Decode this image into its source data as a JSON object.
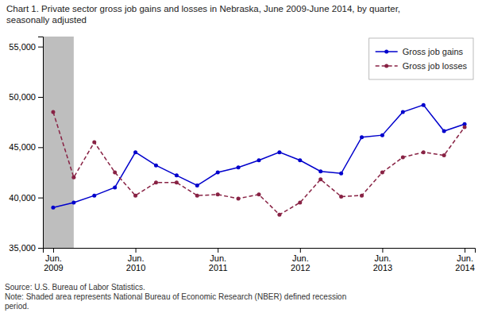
{
  "chart_data": {
    "type": "line",
    "title": "Chart 1. Private sector gross job gains and losses in Nebraska, June 2009-June  2014, by quarter,\nseasonally adjusted",
    "annotations": [
      "Source: U.S. Bureau of Labor Statistics.\nNote: Shaded area represents National Bureau of Economic Research (NBER) defined recession\nperiod."
    ],
    "categories": [
      "Jun.\n2009",
      null,
      null,
      null,
      "Jun.\n2010",
      null,
      null,
      null,
      "Jun.\n2011",
      null,
      null,
      null,
      "Jun.\n2012",
      null,
      null,
      null,
      "Jun.\n2013",
      null,
      null,
      null,
      "Jun.\n2014"
    ],
    "series": [
      {
        "name": "Gross job gains",
        "color": "#0000CC",
        "marker": "circle",
        "line_style": "solid",
        "values": [
          39000,
          39500,
          40200,
          41000,
          44500,
          43200,
          42200,
          41200,
          42500,
          43000,
          43700,
          44500,
          43700,
          42600,
          42400,
          46000,
          46200,
          48500,
          49200,
          46600,
          47300
        ]
      },
      {
        "name": "Gross job losses",
        "color": "#882244",
        "marker": "circle",
        "line_style": "dashed",
        "values": [
          48500,
          42000,
          45500,
          42500,
          40200,
          41500,
          41500,
          40200,
          40300,
          39900,
          40300,
          38300,
          39500,
          41800,
          40100,
          40200,
          42500,
          44000,
          44500,
          44200,
          47000
        ]
      }
    ],
    "shade": {
      "from": -0.5,
      "to": 1.0,
      "color": "#BEBEBE"
    },
    "ylim": [
      35000,
      56000
    ],
    "yticks": [
      {
        "value": 35000,
        "label": "35,000"
      },
      {
        "value": 40000,
        "label": "40,000"
      },
      {
        "value": 45000,
        "label": "45,000"
      },
      {
        "value": 50000,
        "label": "50,000"
      },
      {
        "value": 55000,
        "label": "55,000"
      }
    ],
    "grid": false,
    "legend": "top-right"
  }
}
